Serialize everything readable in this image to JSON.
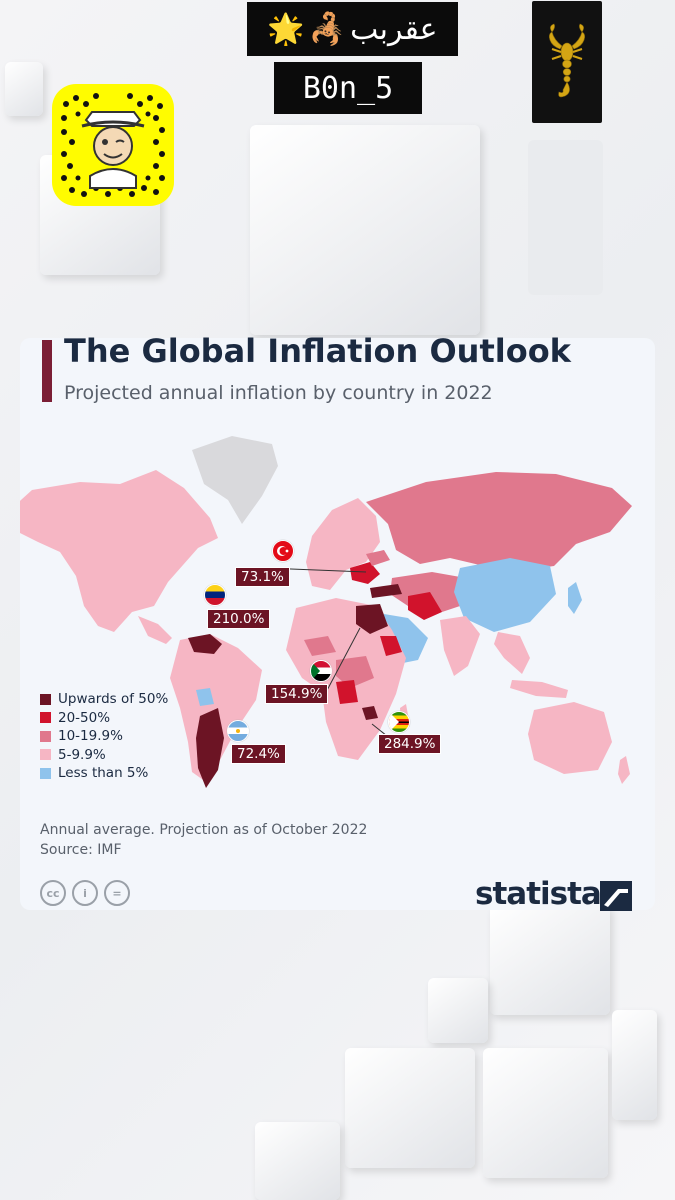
{
  "overlay": {
    "title_text": "عقربب",
    "title_emoji_star": "🌟",
    "title_emoji_scorpion": "🦂",
    "handle": "B0n_5",
    "snapcode_icon": "snapchat-snapcode-icon",
    "badge_icon": "gold-scorpion-icon"
  },
  "chart": {
    "title": "The Global Inflation Outlook",
    "subtitle": "Projected annual inflation by country in 2022",
    "footnote_line1": "Annual average. Projection as of October 2022",
    "footnote_line2": "Source: IMF",
    "brand": "statista",
    "license_icons": [
      "cc-icon",
      "attribution-icon",
      "no-derivatives-icon"
    ],
    "license_labels": [
      "cc",
      "i",
      "="
    ]
  },
  "chart_data": {
    "type": "choropleth",
    "title": "The Global Inflation Outlook",
    "subtitle": "Projected annual inflation by country in 2022",
    "legend": [
      {
        "label": "Upwards of 50%",
        "color": "#6c1424"
      },
      {
        "label": "20-50%",
        "color": "#d1132c"
      },
      {
        "label": "10-19.9%",
        "color": "#e0788d"
      },
      {
        "label": "5-9.9%",
        "color": "#f6b6c4"
      },
      {
        "label": "Less than 5%",
        "color": "#8fc3ec"
      }
    ],
    "callouts": [
      {
        "value": "73.1%",
        "flag": "turkey-flag-icon"
      },
      {
        "value": "210.0%",
        "flag": "venezuela-flag-icon"
      },
      {
        "value": "154.9%",
        "flag": "sudan-flag-icon"
      },
      {
        "value": "284.9%",
        "flag": "zimbabwe-flag-icon"
      },
      {
        "value": "72.4%",
        "flag": "argentina-flag-icon"
      }
    ],
    "footnote": "Annual average. Projection as of October 2022",
    "source": "Source: IMF"
  }
}
